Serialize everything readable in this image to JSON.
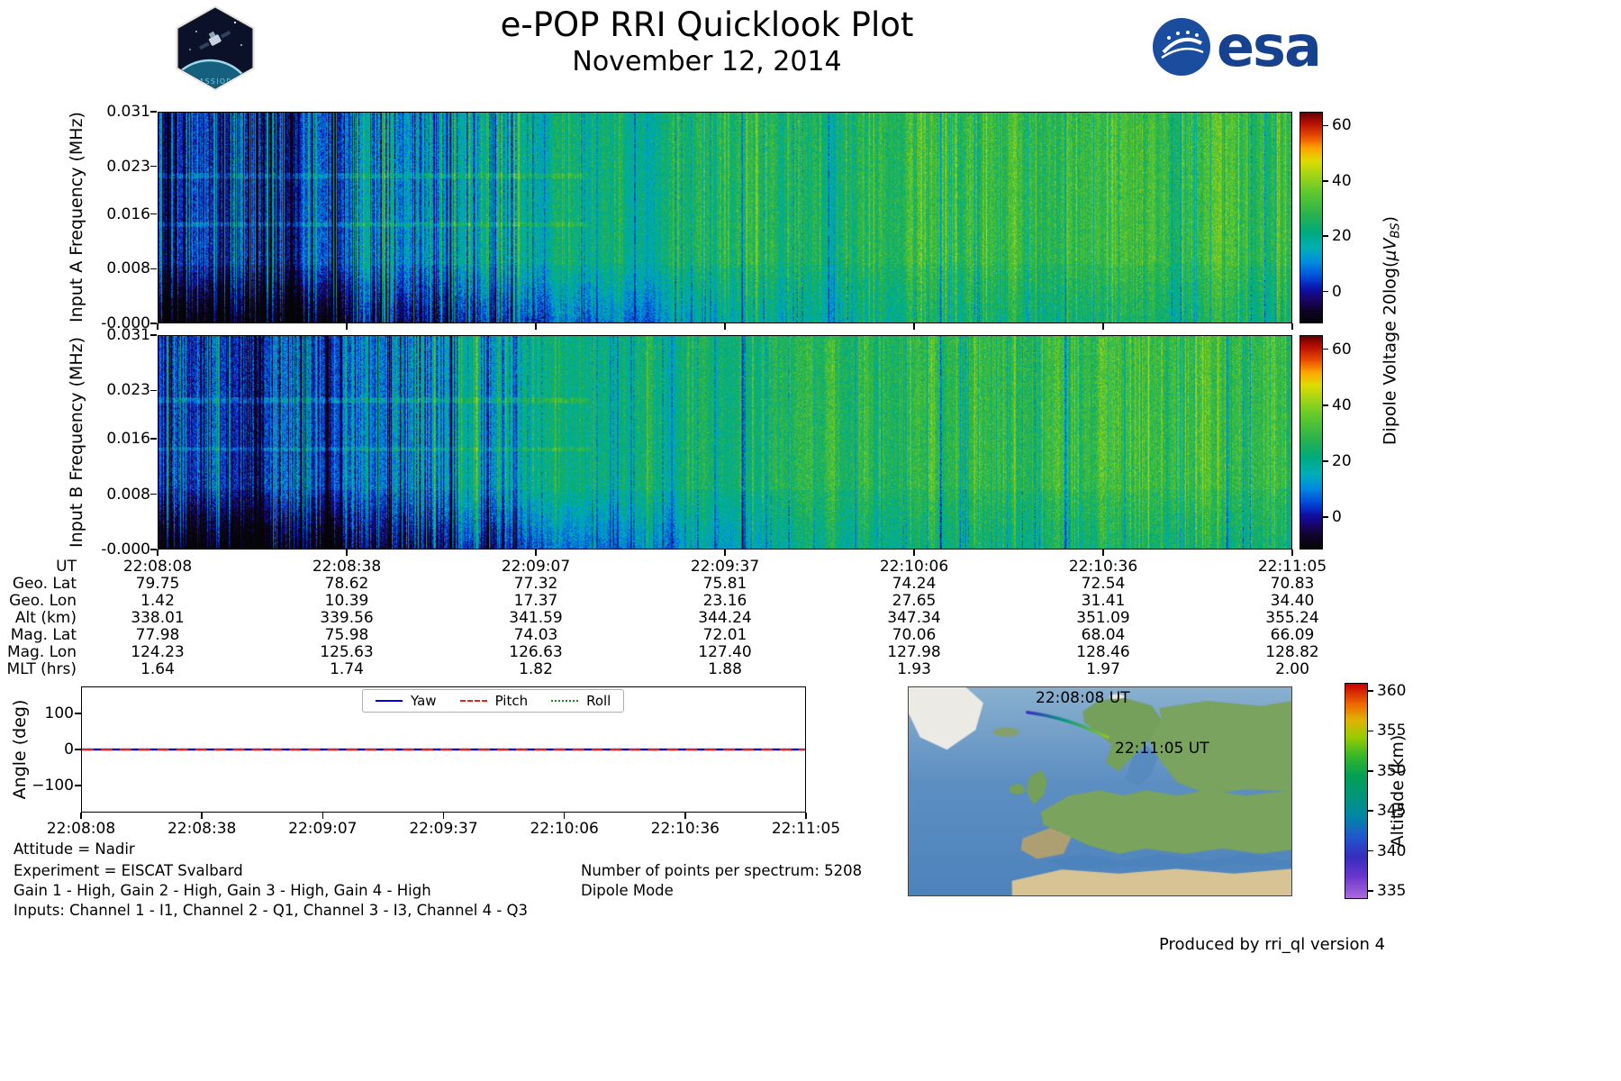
{
  "header": {
    "title": "e-POP RRI Quicklook Plot",
    "date": "November 12, 2014",
    "mission_patch_text": "CASSIOPE",
    "esa_logo_text": "esa"
  },
  "chart_data": [
    {
      "type": "heatmap",
      "name": "spectrogram-input-a",
      "ylabel": "Input A Frequency (MHz)",
      "ytick_labels": [
        "0.031",
        "0.023",
        "0.016",
        "0.008",
        "-0.000"
      ],
      "yticks_mhz": [
        0.031,
        0.023,
        0.016,
        0.008,
        0.0
      ],
      "time_start": "22:08:08",
      "time_end": "22:11:05",
      "colorbar": {
        "ticks": [
          60,
          40,
          20,
          0
        ],
        "range": [
          -11.5,
          65
        ],
        "label_parts": {
          "pre": "Dipole Voltage 20log(",
          "unit": "μV",
          "sub": "BS",
          "post": ")"
        }
      },
      "pattern": "broadband HF noise: near-black/navy with blue vertical striations 22:08:08-22:08:50, mixed blue-green columns to 22:09:30, sustained green 20-40 dB afterwards, weaker teal band below 0.008 MHz"
    },
    {
      "type": "heatmap",
      "name": "spectrogram-input-b",
      "ylabel": "Input B Frequency (MHz)",
      "ytick_labels": [
        "0.031",
        "0.023",
        "0.016",
        "0.008",
        "-0.000"
      ],
      "yticks_mhz": [
        0.031,
        0.023,
        0.016,
        0.008,
        0.0
      ],
      "time_start": "22:08:08",
      "time_end": "22:11:05",
      "colorbar": {
        "ticks": [
          60,
          40,
          20,
          0
        ],
        "range": [
          -11.5,
          65
        ],
        "label_parts": {
          "pre": "Dipole Voltage 20log(",
          "unit": "μV",
          "sub": "BS",
          "post": ")"
        }
      },
      "pattern": "same structure as Input A"
    },
    {
      "type": "table",
      "name": "ephemeris",
      "rows": [
        {
          "label": "UT",
          "values": [
            "22:08:08",
            "22:08:38",
            "22:09:07",
            "22:09:37",
            "22:10:06",
            "22:10:36",
            "22:11:05"
          ]
        },
        {
          "label": "Geo. Lat",
          "values": [
            "79.75",
            "78.62",
            "77.32",
            "75.81",
            "74.24",
            "72.54",
            "70.83"
          ]
        },
        {
          "label": "Geo. Lon",
          "values": [
            "1.42",
            "10.39",
            "17.37",
            "23.16",
            "27.65",
            "31.41",
            "34.40"
          ]
        },
        {
          "label": "Alt (km)",
          "values": [
            "338.01",
            "339.56",
            "341.59",
            "344.24",
            "347.34",
            "351.09",
            "355.24"
          ]
        },
        {
          "label": "Mag. Lat",
          "values": [
            "77.98",
            "75.98",
            "74.03",
            "72.01",
            "70.06",
            "68.04",
            "66.09"
          ]
        },
        {
          "label": "Mag. Lon",
          "values": [
            "124.23",
            "125.63",
            "126.63",
            "127.40",
            "127.98",
            "128.46",
            "128.82"
          ]
        },
        {
          "label": "MLT (hrs)",
          "values": [
            "1.64",
            "1.74",
            "1.82",
            "1.88",
            "1.93",
            "1.97",
            "2.00"
          ]
        }
      ]
    },
    {
      "type": "line",
      "name": "attitude-angles",
      "ylabel": "Angle (deg)",
      "ylim": [
        -175,
        175
      ],
      "ytick_labels": [
        "100",
        "0",
        "−100"
      ],
      "yticks": [
        100,
        0,
        -100
      ],
      "xticks": [
        "22:08:08",
        "22:08:38",
        "22:09:07",
        "22:09:37",
        "22:10:06",
        "22:10:36",
        "22:11:05"
      ],
      "legend_position": "upper center",
      "series": [
        {
          "name": "Yaw",
          "color": "#0000e0",
          "dash": "solid",
          "values": [
            0,
            0,
            0,
            0,
            0,
            0,
            0
          ]
        },
        {
          "name": "Pitch",
          "color": "#e82020",
          "dash": "dashed",
          "values": [
            0,
            0,
            0,
            0,
            0,
            0,
            0
          ]
        },
        {
          "name": "Roll",
          "color": "#1a8c1a",
          "dash": "dotted",
          "values": [
            0,
            0,
            0,
            0,
            0,
            0,
            0
          ]
        }
      ]
    },
    {
      "type": "map",
      "name": "ground-track",
      "region": "North Atlantic / Europe",
      "track_start_label": "22:08:08 UT",
      "track_end_label": "22:11:05 UT",
      "track_altitude_km": [
        338.01,
        355.24
      ],
      "colorbar": {
        "label": "Altitude (km)",
        "ticks": [
          360,
          355,
          350,
          345,
          340,
          335
        ],
        "range": [
          334,
          361
        ]
      }
    }
  ],
  "notes": {
    "attitude": "Attitude = Nadir",
    "experiment": "Experiment = EISCAT Svalbard",
    "gains": "Gain 1 - High, Gain 2 - High, Gain 3 - High, Gain 4 - High",
    "inputs": "Inputs: Channel 1 - I1, Channel 2 - Q1, Channel 3 - I3, Channel 4 - Q3",
    "points_per_spectrum": "Number of points per spectrum: 5208",
    "mode": "Dipole Mode"
  },
  "footer": {
    "credit": "Produced by rri_ql version 4"
  }
}
